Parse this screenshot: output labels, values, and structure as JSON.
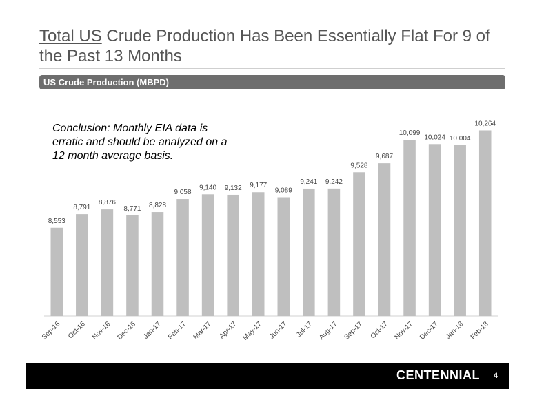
{
  "slide": {
    "title_underlined": "Total US",
    "title_rest": " Crude Production Has Been Essentially Flat For 9 of the Past 13 Months",
    "section_label": "US Crude Production (MBPD)",
    "conclusion": "Conclusion: Monthly EIA data is erratic and should be analyzed on a 12 month average basis.",
    "brand": "CENTENNIAL",
    "page_number": "4"
  },
  "colors": {
    "bar": "#bfbfbf",
    "axis": "#d0d0d0",
    "text": "#444444"
  },
  "chart_data": {
    "type": "bar",
    "title": "US Crude Production (MBPD)",
    "categories": [
      "Sep-16",
      "Oct-16",
      "Nov-16",
      "Dec-16",
      "Jan-17",
      "Feb-17",
      "Mar-17",
      "Apr-17",
      "May-17",
      "Jun-17",
      "Jul-17",
      "Aug-17",
      "Sep-17",
      "Oct-17",
      "Nov-17",
      "Dec-17",
      "Jan-18",
      "Feb-18"
    ],
    "values": [
      8553,
      8791,
      8876,
      8771,
      8828,
      9058,
      9140,
      9132,
      9177,
      9089,
      9241,
      9242,
      9528,
      9687,
      10099,
      10024,
      10004,
      10264
    ],
    "labels": [
      "8,553",
      "8,791",
      "8,876",
      "8,771",
      "8,828",
      "9,058",
      "9,140",
      "9,132",
      "9,177",
      "9,089",
      "9,241",
      "9,242",
      "9,528",
      "9,687",
      "10,099",
      "10,024",
      "10,004",
      "10,264"
    ],
    "xlabel": "",
    "ylabel": "",
    "ylim": [
      7000,
      10500
    ],
    "grid": false,
    "legend": "none"
  }
}
